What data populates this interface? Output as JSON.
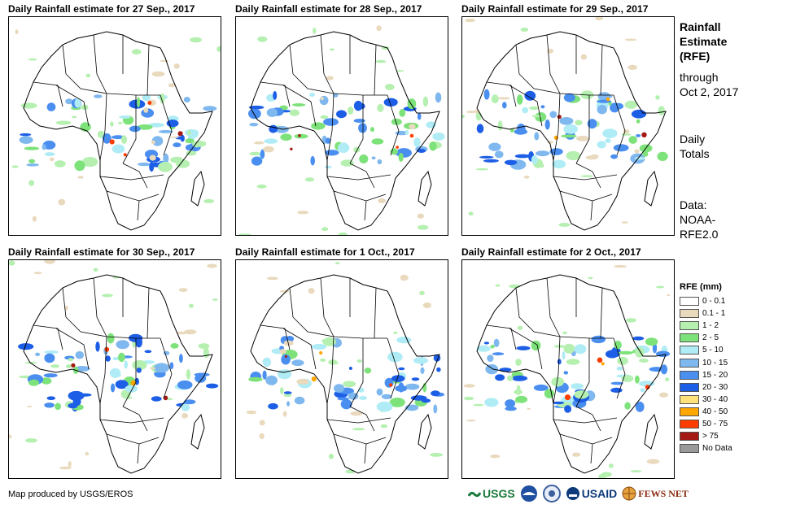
{
  "panels": [
    {
      "title": "Daily Rainfall estimate for 27 Sep., 2017"
    },
    {
      "title": "Daily Rainfall estimate for 28 Sep., 2017"
    },
    {
      "title": "Daily Rainfall estimate for 29 Sep., 2017"
    },
    {
      "title": "Daily Rainfall estimate for 30 Sep., 2017"
    },
    {
      "title": "Daily Rainfall estimate for 1 Oct., 2017"
    },
    {
      "title": "Daily Rainfall estimate for 2 Oct., 2017"
    }
  ],
  "side": {
    "title_line1": "Rainfall",
    "title_line2": "Estimate",
    "title_line3": "(RFE)",
    "through_line1": "through",
    "through_line2": "Oct 2, 2017",
    "totals_line1": "Daily",
    "totals_line2": "Totals",
    "data_line1": "Data:",
    "data_line2": "NOAA-",
    "data_line3": "RFE2.0"
  },
  "legend": {
    "title": "RFE (mm)",
    "items": [
      {
        "label": "0 - 0.1",
        "color": "#ffffff"
      },
      {
        "label": "0.1 - 1",
        "color": "#e9d9bd"
      },
      {
        "label": "1 - 2",
        "color": "#b5f0b0"
      },
      {
        "label": "2 - 5",
        "color": "#7ee27a"
      },
      {
        "label": "5 - 10",
        "color": "#b0ecf5"
      },
      {
        "label": "10 - 15",
        "color": "#7fb8ef"
      },
      {
        "label": "15 - 20",
        "color": "#4a8ff0"
      },
      {
        "label": "20 - 30",
        "color": "#1d5ee6"
      },
      {
        "label": "30 - 40",
        "color": "#ffe37a"
      },
      {
        "label": "40 - 50",
        "color": "#ffa600"
      },
      {
        "label": "50 - 75",
        "color": "#ff3c00"
      },
      {
        "label": "> 75",
        "color": "#a31a14"
      },
      {
        "label": "No Data",
        "color": "#9a9a9a"
      }
    ]
  },
  "credit": "Map produced by USGS/EROS",
  "logos": {
    "usgs": "USGS",
    "usaid": "USAID",
    "fewsnet": "FEWS NET"
  }
}
